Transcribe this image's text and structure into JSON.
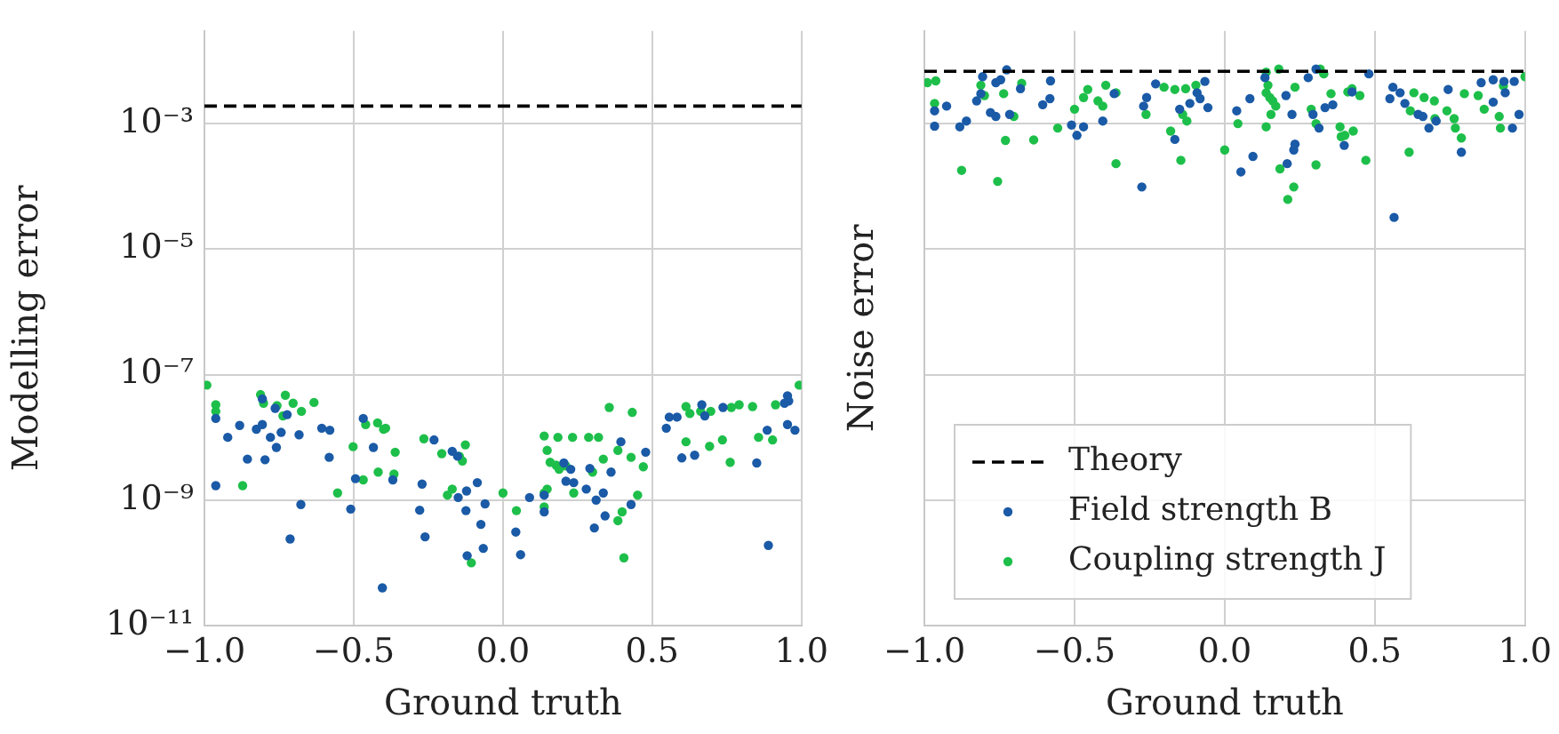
{
  "chart_data": [
    {
      "type": "scatter",
      "xlabel": "Ground truth",
      "ylabel": "Modelling error",
      "log": "y",
      "grid": true,
      "marker": "circle",
      "legend": false,
      "xlim": [
        -1,
        1
      ],
      "xticks": [
        {
          "value": -1,
          "label": "−1.0"
        },
        {
          "value": -0.5,
          "label": "−0.5"
        },
        {
          "value": 0,
          "label": "0.0"
        },
        {
          "value": 0.5,
          "label": "0.5"
        },
        {
          "value": 1,
          "label": "1.0"
        }
      ],
      "ylim": [
        1e-11,
        0.03
      ],
      "yticks": [
        {
          "value": 1e-11,
          "label": "10⁻¹¹"
        },
        {
          "value": 1e-09,
          "label": "10⁻⁹"
        },
        {
          "value": 1e-07,
          "label": "10⁻⁷"
        },
        {
          "value": 1e-05,
          "label": "10⁻⁵"
        },
        {
          "value": 0.001,
          "label": "10⁻³"
        }
      ],
      "ref_lines": [
        {
          "axis": "y",
          "value": 0.0019,
          "color": "#000000",
          "line_style": "dashed"
        }
      ],
      "series": [
        {
          "color": "#1a5aa6",
          "x": [
            -0.962,
            -0.922,
            -0.882,
            -0.856,
            -0.826,
            -0.806,
            -0.797,
            -0.779,
            -0.763,
            -0.759,
            -0.743,
            -0.723,
            -0.713,
            -0.683,
            -0.677,
            -0.607,
            -0.58,
            -0.582,
            -0.962,
            -0.51,
            -0.494,
            -0.468,
            -0.434,
            -0.404,
            -0.369,
            -0.279,
            -0.271,
            -0.261,
            -0.231,
            -0.17,
            -0.152,
            -0.12,
            -0.15,
            -0.122,
            -0.124,
            -0.086,
            -0.074,
            -0.06,
            -0.066,
            -0.806,
            0.043,
            0.059,
            0.089,
            0.138,
            0.138,
            0.204,
            0.211,
            0.227,
            0.237,
            0.279,
            0.291,
            0.306,
            0.312,
            0.336,
            0.342,
            0.362,
            0.395,
            0.429,
            0.478,
            0.547,
            0.557,
            0.583,
            0.599,
            0.642,
            0.666,
            0.676,
            0.737,
            0.85,
            0.885,
            0.889,
            0.953,
            0.957,
            0.953,
            0.978,
            0.943
          ],
          "values": [
            2e-08,
            1e-08,
            1.55e-08,
            4.5e-09,
            1.35e-08,
            1.6e-08,
            4.4e-09,
            1e-08,
            2.9e-08,
            6.9e-09,
            1.2e-08,
            2.3e-08,
            2.4e-10,
            1.1e-08,
            8.5e-10,
            1.4e-08,
            1.3e-08,
            4.8e-09,
            1.7e-09,
            7.2e-10,
            2.2e-09,
            2e-08,
            6.9e-09,
            4e-11,
            2.1e-09,
            6.9e-10,
            1.8e-09,
            2.6e-10,
            9.1e-09,
            6e-09,
            5e-09,
            1.3e-10,
            1.1e-09,
            1.4e-09,
            6.8e-10,
            1.9e-09,
            4.1e-10,
            8.7e-10,
            1.7e-10,
            4.1e-08,
            3.1e-10,
            1.35e-10,
            1.1e-09,
            1.2e-09,
            6.5e-10,
            3.9e-09,
            2e-09,
            3.1e-09,
            1.9e-09,
            1.5e-09,
            3.2e-09,
            3.6e-10,
            1e-09,
            1.3e-09,
            5.6e-10,
            2.8e-09,
            8.5e-09,
            8.5e-10,
            5.8e-09,
            1.4e-08,
            2.1e-08,
            2.1e-08,
            4.7e-09,
            5.2e-09,
            3.3e-08,
            2.2e-08,
            3e-08,
            3.9e-09,
            1.3e-08,
            1.9e-10,
            4.6e-08,
            3.8e-08,
            1.6e-08,
            1.3e-08,
            3.5e-08
          ]
        },
        {
          "color": "#1dbf4a",
          "x": [
            -0.992,
            -0.962,
            -0.962,
            -0.812,
            -0.802,
            -0.757,
            -0.729,
            -0.737,
            -0.703,
            -0.675,
            -0.633,
            -0.872,
            -0.554,
            -0.502,
            -0.46,
            -0.42,
            -0.4,
            -0.393,
            -0.361,
            -0.418,
            -0.468,
            -0.365,
            -0.265,
            -0.205,
            -0.126,
            -0.146,
            -0.136,
            -0.186,
            -0.17,
            -0.106,
            0.0,
            0.045,
            0.138,
            0.148,
            0.138,
            0.138,
            0.184,
            0.233,
            0.287,
            0.32,
            0.356,
            0.433,
            0.148,
            0.158,
            0.178,
            0.188,
            0.211,
            0.3,
            0.336,
            0.385,
            0.429,
            0.47,
            0.451,
            0.399,
            0.385,
            0.405,
            0.237,
            0.613,
            0.613,
            0.626,
            0.662,
            0.692,
            0.696,
            0.735,
            0.761,
            0.765,
            0.791,
            0.836,
            0.856,
            0.903,
            0.913,
            0.992
          ],
          "values": [
            6.8e-08,
            3.3e-08,
            2.6e-08,
            4.8e-08,
            3.5e-08,
            3.2e-08,
            4.7e-08,
            2.2e-08,
            3.5e-08,
            2.6e-08,
            3.6e-08,
            1.7e-09,
            1.3e-09,
            7.1e-09,
            1.6e-08,
            1.7e-08,
            1.35e-08,
            1.4e-08,
            5.8e-09,
            2.8e-09,
            2.1e-09,
            2.6e-09,
            9.5e-09,
            5.5e-09,
            7.6e-09,
            5e-09,
            4.2e-09,
            1.2e-09,
            1.5e-09,
            1e-10,
            1.3e-09,
            6.8e-10,
            1.3e-09,
            1.5e-09,
            7.8e-10,
            1.05e-08,
            1e-08,
            1e-08,
            1e-08,
            1e-08,
            3e-08,
            2.5e-08,
            6.2e-09,
            4e-09,
            3.6e-09,
            3.1e-09,
            3.5e-09,
            2.8e-09,
            4.5e-09,
            6.2e-09,
            4.8e-09,
            3.4e-09,
            1.2e-09,
            6.5e-10,
            4.7e-10,
            1.2e-10,
            1.3e-09,
            3.1e-08,
            8.5e-09,
            2.4e-08,
            2.6e-08,
            7.2e-09,
            2.6e-08,
            9.1e-09,
            4e-09,
            3e-08,
            3.3e-08,
            3.1e-08,
            1e-08,
            9.1e-09,
            3.3e-08,
            6.8e-08
          ]
        }
      ]
    },
    {
      "type": "scatter",
      "xlabel": "Ground truth",
      "ylabel": "Noise error",
      "log": "y",
      "grid": true,
      "marker": "circle",
      "legend": "bottom",
      "tick_labels": "x",
      "xlim": [
        -1,
        1
      ],
      "xticks": [
        {
          "value": -1,
          "label": "−1.0"
        },
        {
          "value": -0.5,
          "label": "−0.5"
        },
        {
          "value": 0,
          "label": "0.0"
        },
        {
          "value": 0.5,
          "label": "0.5"
        },
        {
          "value": 1,
          "label": "1.0"
        }
      ],
      "ylim": [
        1e-11,
        0.03
      ],
      "yticks": [
        {
          "value": 1e-11,
          "label": null
        },
        {
          "value": 1e-09,
          "label": null
        },
        {
          "value": 1e-07,
          "label": null
        },
        {
          "value": 1e-05,
          "label": null
        },
        {
          "value": 0.001,
          "label": null
        }
      ],
      "ref_lines": [
        {
          "axis": "y",
          "value": 0.0068,
          "label": "Theory",
          "color": "#000000",
          "line_style": "dashed"
        }
      ],
      "series": [
        {
          "name": "Field strength B",
          "color": "#1a5aa6",
          "x": [
            -0.966,
            -0.966,
            -0.926,
            -0.882,
            -0.86,
            -0.826,
            -0.812,
            -0.806,
            -0.78,
            -0.762,
            -0.762,
            -0.746,
            -0.726,
            -0.716,
            -0.68,
            -0.606,
            -0.58,
            -0.582,
            -0.51,
            -0.492,
            -0.47,
            -0.406,
            -0.368,
            -0.276,
            -0.27,
            -0.26,
            -0.23,
            -0.166,
            -0.15,
            -0.116,
            -0.092,
            -0.082,
            -0.066,
            -0.056,
            0.04,
            0.054,
            0.084,
            0.094,
            0.134,
            0.204,
            0.208,
            0.224,
            0.23,
            0.234,
            0.278,
            0.294,
            0.304,
            0.314,
            0.334,
            0.36,
            0.398,
            0.424,
            0.48,
            0.55,
            0.56,
            0.564,
            0.584,
            0.6,
            0.644,
            0.66,
            0.68,
            0.704,
            0.744,
            0.788,
            0.854,
            0.894,
            0.894,
            0.93,
            0.934,
            0.958,
            0.964,
            0.98
          ],
          "values": [
            0.0016,
            0.00091,
            0.0019,
            0.00089,
            0.0011,
            0.0023,
            0.003,
            0.0056,
            0.0015,
            0.0013,
            0.0045,
            0.005,
            0.0072,
            0.0014,
            0.0036,
            0.002,
            0.0048,
            0.0025,
            0.00095,
            0.00065,
            0.00089,
            0.0011,
            0.003,
            9.8e-05,
            0.0019,
            0.0026,
            0.0043,
            0.00056,
            0.0017,
            0.0021,
            0.0031,
            0.0025,
            0.0047,
            0.0018,
            0.0016,
            0.00017,
            0.0025,
            0.0003,
            0.0054,
            0.0028,
            0.00023,
            0.0014,
            0.00038,
            0.00047,
            0.0054,
            0.0014,
            0.0074,
            0.00085,
            0.0018,
            0.002,
            0.00045,
            0.0032,
            0.0062,
            0.0025,
            0.0038,
            3.2e-05,
            0.0031,
            0.0021,
            0.0014,
            0.0013,
            0.00085,
            0.0011,
            0.0035,
            0.00035,
            0.0045,
            0.005,
            0.0022,
            0.0047,
            0.0031,
            0.00085,
            0.0047,
            0.0014
          ]
        },
        {
          "name": "Coupling strength J",
          "color": "#1dbf4a",
          "x": [
            -0.99,
            -0.962,
            -0.966,
            -0.812,
            -0.8,
            -0.736,
            -0.676,
            -0.702,
            -0.73,
            -0.636,
            -0.556,
            -0.5,
            -0.47,
            -0.456,
            -0.422,
            -0.406,
            -0.396,
            -0.362,
            -0.362,
            -0.262,
            -0.202,
            -0.18,
            -0.166,
            -0.146,
            -0.14,
            -0.126,
            -0.13,
            -0.096,
            -0.876,
            -0.756,
            0.0,
            0.044,
            0.138,
            0.138,
            0.144,
            0.15,
            0.154,
            0.16,
            0.17,
            0.138,
            0.18,
            0.234,
            0.184,
            0.23,
            0.21,
            0.288,
            0.304,
            0.304,
            0.318,
            0.33,
            0.354,
            0.384,
            0.388,
            0.4,
            0.41,
            0.424,
            0.428,
            0.45,
            0.47,
            0.614,
            0.618,
            0.63,
            0.664,
            0.698,
            0.7,
            0.74,
            0.764,
            0.768,
            0.788,
            0.798,
            0.844,
            0.864,
            0.914,
            0.918,
            0.928,
            1.0
          ],
          "values": [
            0.0045,
            0.0048,
            0.0021,
            0.0041,
            0.0028,
            0.003,
            0.0044,
            0.0013,
            0.00054,
            0.00055,
            0.00085,
            0.0017,
            0.0026,
            0.0035,
            0.0023,
            0.0019,
            0.0041,
            0.0031,
            0.00023,
            0.0014,
            0.0038,
            0.00076,
            0.0035,
            0.00026,
            0.0014,
            0.0011,
            0.0036,
            0.0041,
            0.00018,
            0.00012,
            0.00038,
            0.001,
            0.0066,
            0.0031,
            0.0041,
            0.0026,
            0.0014,
            0.0023,
            0.0019,
            0.00089,
            0.0074,
            0.0038,
            0.00019,
            9.8e-05,
            6.2e-05,
            0.0017,
            0.001,
            0.00022,
            0.0074,
            0.0062,
            0.003,
            0.00089,
            0.00062,
            0.00065,
            0.0032,
            0.0036,
            0.00076,
            0.0028,
            0.00026,
            0.00035,
            0.0016,
            0.0031,
            0.0026,
            0.0023,
            0.0012,
            0.0016,
            0.0012,
            0.00085,
            0.00059,
            0.003,
            0.0028,
            0.0017,
            0.0013,
            0.00085,
            0.004,
            0.0056
          ]
        }
      ]
    }
  ]
}
